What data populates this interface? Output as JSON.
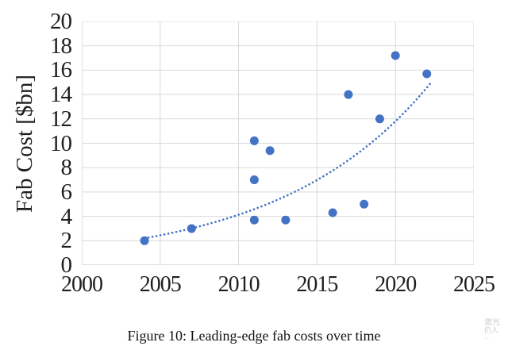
{
  "figure": {
    "caption": "Figure 10: Leading-edge fab costs over time",
    "watermark": {
      "line1": "激光",
      "line2": "仍人",
      "line3": "…",
      "color": "#c8c8c8"
    }
  },
  "chart_data": {
    "type": "scatter",
    "title": "",
    "xlabel": "",
    "ylabel": "Fab Cost [$bn]",
    "xlim": [
      2000,
      2025
    ],
    "ylim": [
      0,
      20
    ],
    "x_ticks": [
      2000,
      2005,
      2010,
      2015,
      2020,
      2025
    ],
    "y_ticks": [
      0,
      2,
      4,
      6,
      8,
      10,
      12,
      14,
      16,
      18,
      20
    ],
    "grid": true,
    "legend_position": "none",
    "marker_color": "#4472C4",
    "trendline_color": "#4472C4",
    "grid_color": "#d9d9d9",
    "axis_color": "#bfbfbf",
    "points": [
      {
        "x": 2004,
        "y": 2.0
      },
      {
        "x": 2007,
        "y": 3.0
      },
      {
        "x": 2011,
        "y": 3.7
      },
      {
        "x": 2011,
        "y": 7.0
      },
      {
        "x": 2011,
        "y": 10.2
      },
      {
        "x": 2012,
        "y": 9.4
      },
      {
        "x": 2013,
        "y": 3.7
      },
      {
        "x": 2016,
        "y": 4.3
      },
      {
        "x": 2017,
        "y": 14.0
      },
      {
        "x": 2018,
        "y": 5.0
      },
      {
        "x": 2019,
        "y": 12.0
      },
      {
        "x": 2020,
        "y": 17.2
      },
      {
        "x": 2022,
        "y": 15.7
      }
    ],
    "trendline": {
      "style": "dotted",
      "type": "exponential",
      "x_start": 2004,
      "x_end": 2022.3,
      "y_start": 2.2,
      "growth_rate": 0.105
    }
  }
}
